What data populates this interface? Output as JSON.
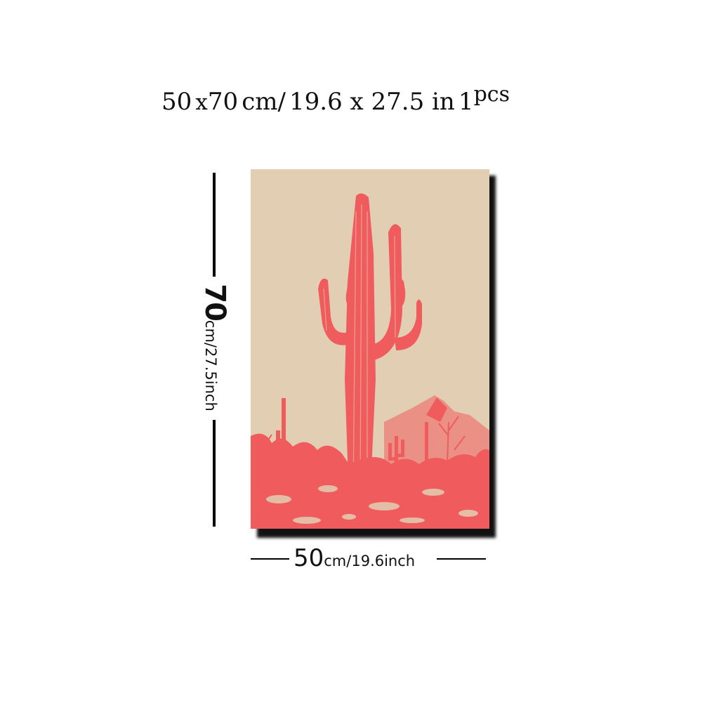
{
  "headline": {
    "width_cm": "50",
    "x_sep": "x",
    "height_cm": "70",
    "cm_unit": "cm/",
    "inch_dims": "19.6 x 27.5 in",
    "qty_num": "1",
    "qty_unit": "pcs"
  },
  "height_label": {
    "num": "70",
    "unit": "cm/27.5inch"
  },
  "width_label": {
    "num": "50",
    "unit": "cm/19.6inch"
  },
  "colors": {
    "canvas_bg": "#e2cfb3",
    "cactus": "#f05c5e",
    "text": "#111111"
  },
  "artwork_icon": "saguaro-cactus-print"
}
